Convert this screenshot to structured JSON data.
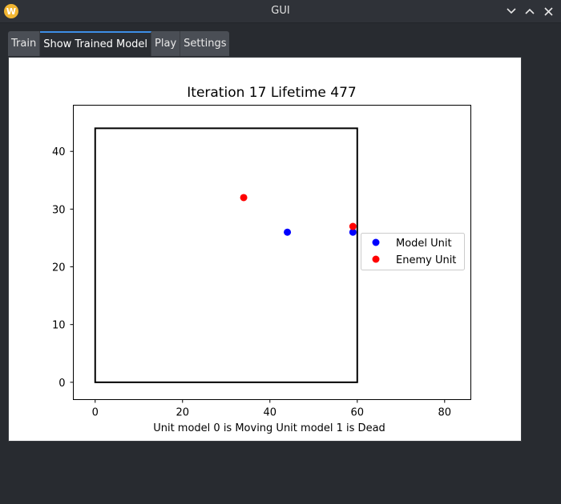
{
  "window": {
    "title": "GUI",
    "app_icon": "W",
    "controls": [
      "minimize-icon",
      "maximize-icon",
      "close-icon"
    ]
  },
  "tabs": [
    {
      "label": "Train",
      "active": false
    },
    {
      "label": "Show Trained Model",
      "active": true
    },
    {
      "label": "Play",
      "active": false
    },
    {
      "label": "Settings",
      "active": false
    }
  ],
  "chart_data": {
    "type": "scatter",
    "title": "Iteration 17 Lifetime 477",
    "xlabel": "Unit model 0 is Moving Unit model 1 is Dead",
    "ylabel": "",
    "xlim": [
      -5,
      86
    ],
    "ylim": [
      -3,
      48
    ],
    "xticks": [
      0,
      20,
      40,
      60,
      80
    ],
    "yticks": [
      0,
      10,
      20,
      30,
      40
    ],
    "grid": false,
    "legend_position": "right",
    "boundary": {
      "x0": 0,
      "y0": 0,
      "x1": 60,
      "y1": 44
    },
    "series": [
      {
        "name": "Model Unit",
        "color": "#0000ff",
        "points": [
          [
            44,
            26
          ],
          [
            59,
            26
          ]
        ]
      },
      {
        "name": "Enemy Unit",
        "color": "#ff0000",
        "points": [
          [
            34,
            32
          ],
          [
            59,
            27
          ]
        ]
      }
    ]
  }
}
